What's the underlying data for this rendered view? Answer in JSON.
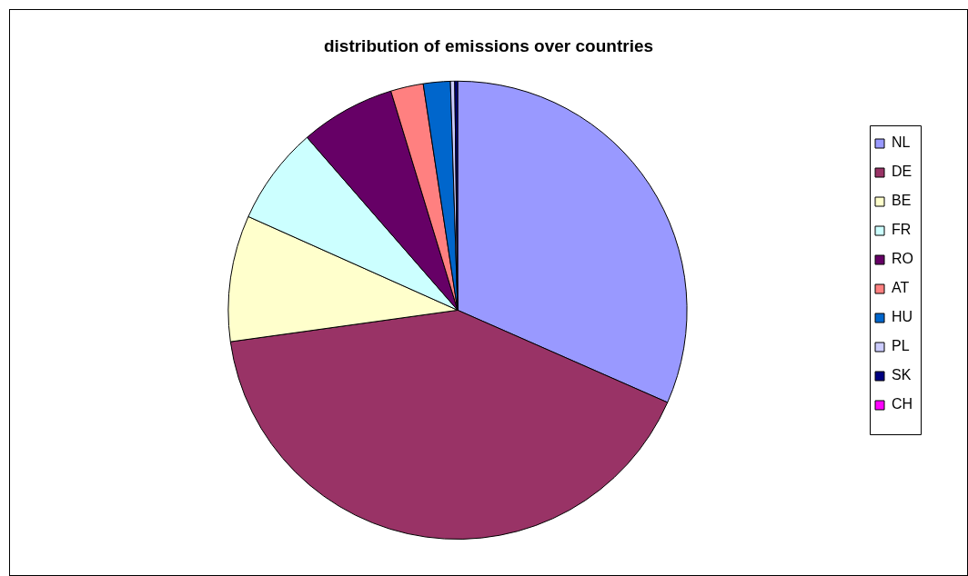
{
  "chart_data": {
    "type": "pie",
    "title": "distribution of emissions over countries",
    "categories": [
      "NL",
      "DE",
      "BE",
      "FR",
      "RO",
      "AT",
      "HU",
      "PL",
      "SK",
      "CH"
    ],
    "values": [
      31.6,
      41.2,
      8.9,
      6.9,
      6.7,
      2.3,
      1.9,
      0.3,
      0.2,
      0
    ],
    "colors": [
      "#9999ff",
      "#993366",
      "#ffffcc",
      "#ccffff",
      "#660066",
      "#ff8080",
      "#0066cc",
      "#ccccff",
      "#000080",
      "#ff00ff"
    ],
    "legend": "right"
  }
}
